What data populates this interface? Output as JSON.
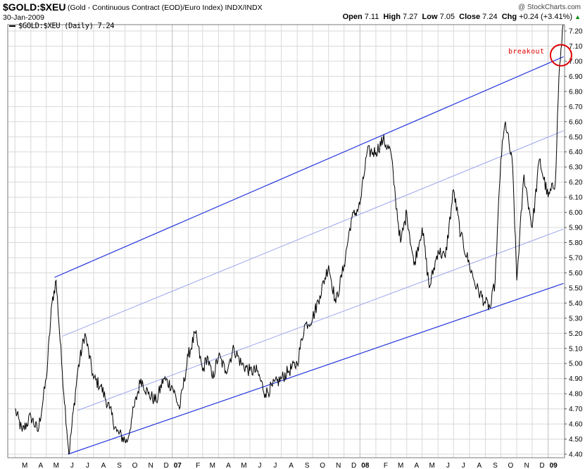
{
  "header": {
    "symbol": "$GOLD:$XEU",
    "description": "(Gold - Continuous Contract (EOD)/Euro Index)  INDX/INDX",
    "date": "30-Jan-2009",
    "copyright": "@ StockCharts.com",
    "open_label": "Open",
    "open": "7.11",
    "high_label": "High",
    "high": "7.27",
    "low_label": "Low",
    "low": "7.05",
    "close_label": "Close",
    "close": "7.24",
    "chg_label": "Chg",
    "chg": "+0.24 (+3.41%)",
    "chg_arrow": "▲"
  },
  "legend": {
    "series_label": "$GOLD:$XEU (Daily) 7.24"
  },
  "annotation": {
    "text": "breakout"
  },
  "colors": {
    "price": "#000000",
    "channel": "#2233dd",
    "channel_inner": "#9aa5ee",
    "highlight": "#e00000",
    "grid": "#d9d9d9"
  },
  "chart_data": {
    "type": "line",
    "ylim": [
      4.4,
      7.28
    ],
    "yticks": [
      "4.40",
      "4.50",
      "4.60",
      "4.70",
      "4.80",
      "4.90",
      "5.00",
      "5.10",
      "5.20",
      "5.30",
      "5.40",
      "5.50",
      "5.60",
      "5.70",
      "5.80",
      "5.90",
      "6.00",
      "6.10",
      "6.20",
      "6.30",
      "6.40",
      "6.50",
      "6.60",
      "6.70",
      "6.80",
      "6.90",
      "7.00",
      "7.10",
      "7.20"
    ],
    "xtick_labels": [
      "M",
      "A",
      "M",
      "J",
      "J",
      "A",
      "S",
      "O",
      "N",
      "D",
      "07",
      "F",
      "M",
      "A",
      "M",
      "J",
      "J",
      "A",
      "S",
      "O",
      "N",
      "D",
      "08",
      "F",
      "M",
      "A",
      "M",
      "J",
      "J",
      "A",
      "S",
      "O",
      "N",
      "D",
      "09"
    ],
    "year_labels": [
      "07",
      "08",
      "09"
    ],
    "series": [
      {
        "name": "$GOLD:$XEU",
        "x": [
          "2006-03-01",
          "2006-03-15",
          "2006-04-01",
          "2006-04-15",
          "2006-05-01",
          "2006-05-12",
          "2006-05-20",
          "2006-06-01",
          "2006-06-14",
          "2006-07-01",
          "2006-07-15",
          "2006-08-01",
          "2006-08-15",
          "2006-09-01",
          "2006-09-15",
          "2006-10-05",
          "2006-10-15",
          "2006-11-01",
          "2006-11-15",
          "2006-12-01",
          "2006-12-15",
          "2007-01-01",
          "2007-01-15",
          "2007-02-01",
          "2007-02-15",
          "2007-03-01",
          "2007-03-10",
          "2007-03-20",
          "2007-04-01",
          "2007-04-15",
          "2007-05-01",
          "2007-05-15",
          "2007-06-01",
          "2007-06-15",
          "2007-07-01",
          "2007-07-15",
          "2007-08-01",
          "2007-08-15",
          "2007-09-01",
          "2007-09-15",
          "2007-10-01",
          "2007-10-15",
          "2007-11-01",
          "2007-11-15",
          "2007-12-01",
          "2007-12-15",
          "2008-01-01",
          "2008-01-15",
          "2008-02-01",
          "2008-02-15",
          "2008-03-01",
          "2008-03-10",
          "2008-03-20",
          "2008-04-01",
          "2008-04-15",
          "2008-05-01",
          "2008-05-15",
          "2008-06-01",
          "2008-06-15",
          "2008-07-01",
          "2008-07-15",
          "2008-08-01",
          "2008-08-15",
          "2008-09-01",
          "2008-09-11",
          "2008-09-20",
          "2008-10-01",
          "2008-10-10",
          "2008-10-24",
          "2008-11-01",
          "2008-11-15",
          "2008-12-01",
          "2008-12-15",
          "2009-01-01",
          "2009-01-15",
          "2009-01-22",
          "2009-01-30"
        ],
        "values": [
          4.7,
          4.55,
          4.65,
          4.55,
          4.9,
          5.4,
          5.55,
          4.95,
          4.4,
          4.95,
          5.2,
          4.9,
          4.85,
          4.7,
          4.55,
          4.48,
          4.65,
          4.9,
          4.8,
          4.75,
          4.9,
          4.85,
          4.7,
          5.05,
          5.2,
          4.95,
          5.05,
          4.9,
          5.05,
          4.95,
          5.1,
          5.0,
          4.95,
          4.95,
          4.8,
          4.85,
          4.9,
          4.95,
          5.0,
          5.25,
          5.3,
          5.45,
          5.65,
          5.4,
          5.65,
          5.95,
          6.05,
          6.4,
          6.4,
          6.48,
          6.4,
          6.1,
          5.8,
          6.0,
          5.65,
          5.9,
          5.5,
          5.75,
          5.7,
          6.15,
          5.85,
          5.65,
          5.5,
          5.4,
          5.37,
          5.55,
          6.35,
          6.6,
          6.3,
          5.55,
          6.25,
          5.9,
          6.35,
          6.1,
          6.2,
          6.9,
          7.24
        ]
      }
    ],
    "channel_lines": [
      {
        "name": "upper",
        "points": [
          [
            "2006-05-17",
            5.57
          ],
          [
            "2009-01-31",
            7.03
          ]
        ]
      },
      {
        "name": "lower",
        "points": [
          [
            "2006-06-12",
            4.4
          ],
          [
            "2009-01-31",
            5.53
          ]
        ]
      },
      {
        "name": "inner-upper",
        "points": [
          [
            "2006-06-01",
            5.18
          ],
          [
            "2009-01-31",
            6.54
          ]
        ]
      },
      {
        "name": "inner-lower",
        "points": [
          [
            "2006-07-01",
            4.69
          ],
          [
            "2009-01-31",
            5.89
          ]
        ]
      }
    ],
    "highlight": {
      "label": "breakout",
      "center": [
        "2009-01-26",
        7.03
      ]
    }
  }
}
